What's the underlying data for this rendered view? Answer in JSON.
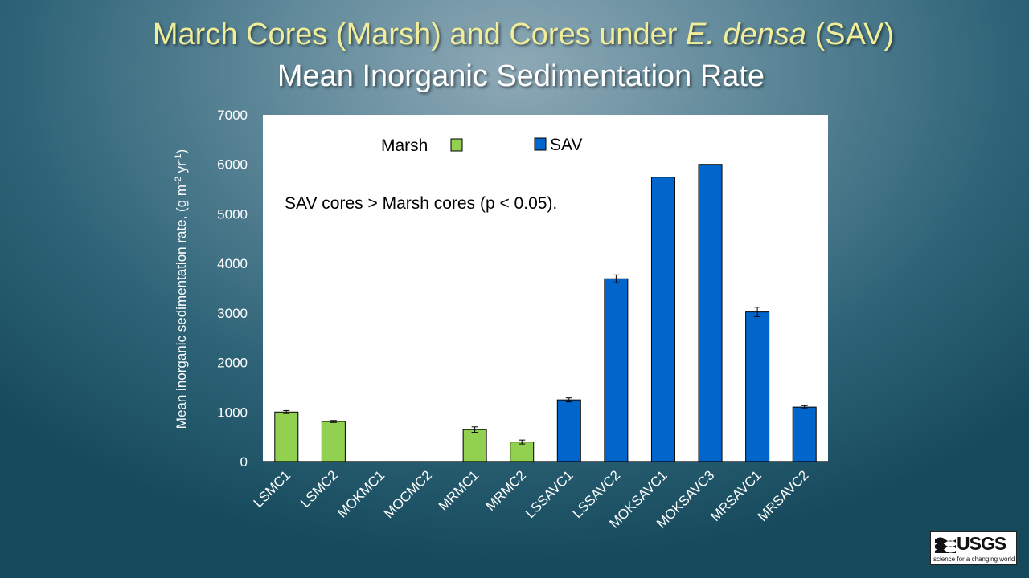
{
  "slide": {
    "title_part1": "March Cores (Marsh) and Cores under ",
    "title_italic": "E. densa",
    "title_part2": " (SAV)",
    "subtitle": "Mean Inorganic Sedimentation Rate"
  },
  "logo": {
    "name": "USGS",
    "tagline": "science for a changing world"
  },
  "chart_data": {
    "type": "bar",
    "title": "Mean Inorganic Sedimentation Rate",
    "ylabel_main": "Mean inorganic sedimentation rate, (g m",
    "ylabel_sup1": "-2",
    "ylabel_mid": " yr",
    "ylabel_sup2": "-1",
    "ylabel_end": ")",
    "xlabel": "",
    "ylim": [
      0,
      7000
    ],
    "yticks": [
      0,
      1000,
      2000,
      3000,
      4000,
      5000,
      6000,
      7000
    ],
    "categories": [
      "LSMC1",
      "LSMC2",
      "MOKMC1",
      "MOCMC2",
      "MRMC1",
      "MRMC2",
      "LSSAVC1",
      "LSSAVC2",
      "MOKSAVC1",
      "MOKSAVC3",
      "MRSAVC1",
      "MRSAVC2"
    ],
    "values": [
      1000,
      810,
      0,
      0,
      645,
      395,
      1245,
      3690,
      5740,
      6000,
      3020,
      1100
    ],
    "errors": [
      30,
      20,
      0,
      0,
      55,
      40,
      40,
      80,
      0,
      0,
      95,
      30
    ],
    "groups": [
      "Marsh",
      "Marsh",
      "Marsh",
      "Marsh",
      "Marsh",
      "Marsh",
      "SAV",
      "SAV",
      "SAV",
      "SAV",
      "SAV",
      "SAV"
    ],
    "legend": [
      {
        "name": "Marsh",
        "color": "#92d050"
      },
      {
        "name": "SAV",
        "color": "#0066cc"
      }
    ],
    "annotation": "SAV cores > Marsh cores (p < 0.05).",
    "grid": false,
    "legend_position": "top"
  }
}
